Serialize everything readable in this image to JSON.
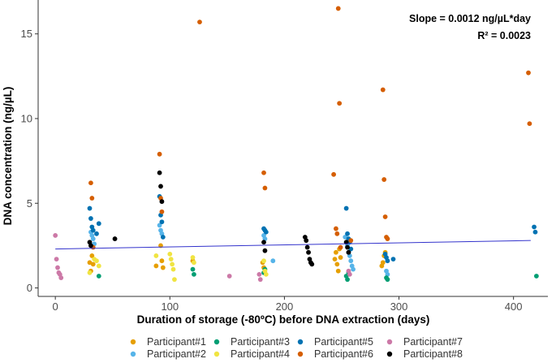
{
  "chart_data": {
    "type": "scatter",
    "xlabel": "Duration of storage (-80ºC) before DNA extraction (days)",
    "ylabel": "DNA concentration (ng/µL)",
    "xlim": [
      -15,
      430
    ],
    "ylim": [
      -0.5,
      17
    ],
    "xticks": [
      0,
      100,
      200,
      300,
      400
    ],
    "yticks": [
      0,
      5,
      10,
      15
    ],
    "grid": false,
    "legend_position": "bottom",
    "annotations": [
      "Slope = 0.0012 ng/µL*day",
      "R² = 0.0023"
    ],
    "regression": {
      "slope": 0.0012,
      "x": [
        0,
        415
      ],
      "y": [
        2.3,
        2.8
      ],
      "color": "#3333cc"
    },
    "series": [
      {
        "name": "Participant#1",
        "color": "#E69F00",
        "points": [
          [
            30,
            1.5
          ],
          [
            31,
            1.0
          ],
          [
            32,
            1.9
          ],
          [
            33,
            1.4
          ],
          [
            88,
            1.3
          ],
          [
            92,
            2.5
          ],
          [
            93,
            1.6
          ],
          [
            94,
            1.2
          ],
          [
            120,
            1.6
          ],
          [
            181,
            1.5
          ],
          [
            182,
            1.2
          ],
          [
            244,
            1.7
          ],
          [
            245,
            2.1
          ],
          [
            246,
            1.4
          ],
          [
            247,
            1.0
          ],
          [
            248,
            2.3
          ],
          [
            249,
            1.8
          ],
          [
            285,
            1.3
          ],
          [
            286,
            1.5
          ],
          [
            287,
            1.9
          ],
          [
            288,
            2.1
          ]
        ]
      },
      {
        "name": "Participant#2",
        "color": "#56B4E9",
        "points": [
          [
            31,
            3.3
          ],
          [
            32,
            3.1
          ],
          [
            33,
            2.9
          ],
          [
            34,
            2.6
          ],
          [
            91,
            3.7
          ],
          [
            92,
            3.4
          ],
          [
            93,
            3.2
          ],
          [
            182,
            3.1
          ],
          [
            183,
            2.9
          ],
          [
            190,
            1.6
          ],
          [
            253,
            3.0
          ],
          [
            254,
            2.7
          ],
          [
            255,
            2.5
          ],
          [
            256,
            2.1
          ],
          [
            257,
            1.9
          ],
          [
            258,
            1.6
          ],
          [
            259,
            1.3
          ],
          [
            260,
            1.1
          ],
          [
            289,
            1.0
          ],
          [
            290,
            0.8
          ]
        ]
      },
      {
        "name": "Participant#3",
        "color": "#009E73",
        "points": [
          [
            38,
            0.7
          ],
          [
            120,
            1.1
          ],
          [
            121,
            0.8
          ],
          [
            182,
            0.9
          ],
          [
            183,
            1.1
          ],
          [
            254,
            0.7
          ],
          [
            255,
            0.5
          ],
          [
            256,
            0.9
          ],
          [
            289,
            0.6
          ],
          [
            290,
            0.5
          ],
          [
            420,
            0.7
          ]
        ]
      },
      {
        "name": "Participant#4",
        "color": "#F0E442",
        "points": [
          [
            30,
            0.9
          ],
          [
            34,
            1.7
          ],
          [
            36,
            1.6
          ],
          [
            38,
            1.3
          ],
          [
            88,
            1.9
          ],
          [
            100,
            2.0
          ],
          [
            101,
            1.7
          ],
          [
            102,
            1.4
          ],
          [
            103,
            1.1
          ],
          [
            104,
            0.5
          ],
          [
            120,
            1.8
          ],
          [
            121,
            1.5
          ],
          [
            182,
            1.6
          ],
          [
            183,
            1.0
          ],
          [
            184,
            0.8
          ]
        ]
      },
      {
        "name": "Participant#5",
        "color": "#0072B2",
        "points": [
          [
            30,
            4.7
          ],
          [
            31,
            4.1
          ],
          [
            32,
            3.6
          ],
          [
            33,
            3.4
          ],
          [
            36,
            3.2
          ],
          [
            38,
            3.8
          ],
          [
            91,
            5.4
          ],
          [
            92,
            4.3
          ],
          [
            93,
            3.9
          ],
          [
            94,
            3.0
          ],
          [
            182,
            3.5
          ],
          [
            183,
            3.4
          ],
          [
            184,
            3.3
          ],
          [
            254,
            4.7
          ],
          [
            255,
            3.2
          ],
          [
            256,
            2.9
          ],
          [
            257,
            2.7
          ],
          [
            258,
            2.3
          ],
          [
            288,
            2.0
          ],
          [
            289,
            1.8
          ],
          [
            290,
            1.6
          ],
          [
            295,
            1.7
          ],
          [
            418,
            3.6
          ],
          [
            419,
            3.3
          ]
        ]
      },
      {
        "name": "Participant#6",
        "color": "#D55E00",
        "points": [
          [
            31,
            6.2
          ],
          [
            32,
            5.3
          ],
          [
            33,
            2.4
          ],
          [
            91,
            7.9
          ],
          [
            92,
            5.3
          ],
          [
            93,
            4.5
          ],
          [
            126,
            15.7
          ],
          [
            182,
            6.8
          ],
          [
            183,
            5.9
          ],
          [
            243,
            6.7
          ],
          [
            245,
            3.5
          ],
          [
            246,
            3.2
          ],
          [
            247,
            16.5
          ],
          [
            248,
            10.9
          ],
          [
            249,
            2.4
          ],
          [
            258,
            2.8
          ],
          [
            286,
            11.7
          ],
          [
            287,
            6.4
          ],
          [
            288,
            4.2
          ],
          [
            289,
            3.0
          ],
          [
            290,
            2.9
          ],
          [
            413,
            12.7
          ],
          [
            414,
            9.7
          ]
        ]
      },
      {
        "name": "Participant#7",
        "color": "#CC79A7",
        "points": [
          [
            0,
            3.1
          ],
          [
            1,
            1.7
          ],
          [
            2,
            1.2
          ],
          [
            3,
            0.9
          ],
          [
            4,
            0.8
          ],
          [
            5,
            0.6
          ],
          [
            152,
            0.7
          ],
          [
            178,
            0.8
          ],
          [
            179,
            0.5
          ],
          [
            256,
            1.0
          ],
          [
            257,
            0.8
          ]
        ]
      },
      {
        "name": "Participant#8",
        "color": "#000000",
        "points": [
          [
            30,
            2.7
          ],
          [
            31,
            2.5
          ],
          [
            52,
            2.9
          ],
          [
            91,
            6.8
          ],
          [
            92,
            6.0
          ],
          [
            93,
            5.1
          ],
          [
            182,
            2.7
          ],
          [
            183,
            2.2
          ],
          [
            218,
            3.0
          ],
          [
            219,
            2.8
          ],
          [
            220,
            2.4
          ],
          [
            221,
            2.1
          ],
          [
            222,
            1.7
          ],
          [
            223,
            1.5
          ],
          [
            224,
            1.4
          ],
          [
            254,
            2.7
          ],
          [
            255,
            2.4
          ],
          [
            256,
            2.1
          ]
        ]
      }
    ]
  }
}
